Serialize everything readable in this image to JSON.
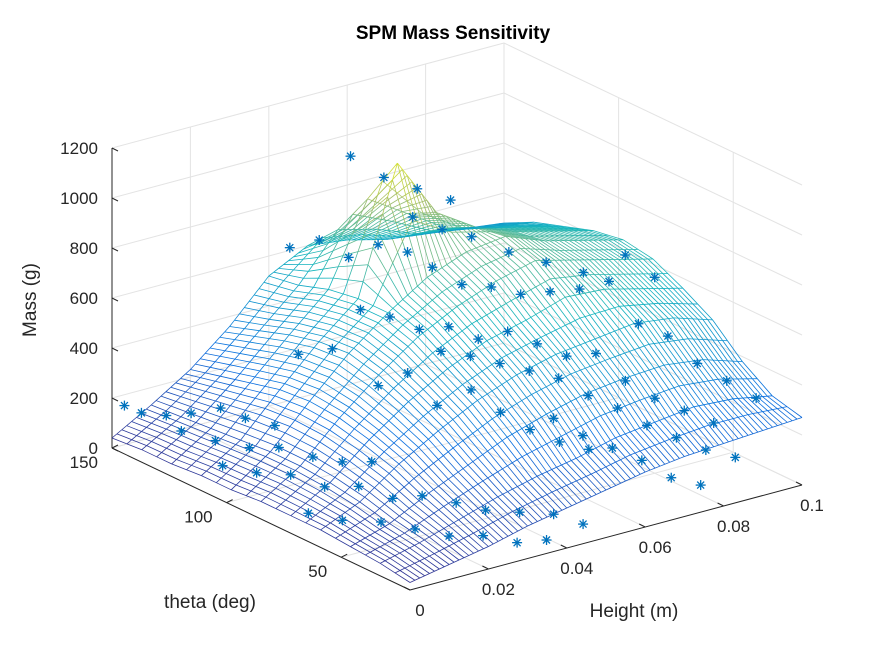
{
  "chart_data": {
    "type": "surface3d",
    "title": "SPM Mass Sensitivity",
    "xlabel": "Height (m)",
    "ylabel": "theta (deg)",
    "zlabel": "Mass (g)",
    "xlim": [
      0,
      0.1
    ],
    "ylim": [
      20,
      150
    ],
    "zlim": [
      0,
      1200
    ],
    "xticks": [
      "0",
      "0.02",
      "0.04",
      "0.06",
      "0.08",
      "0.1"
    ],
    "yticks": [
      "50",
      "100",
      "150"
    ],
    "zticks": [
      "0",
      "200",
      "400",
      "600",
      "800",
      "1000",
      "1200"
    ],
    "grid": true,
    "colormap": "parula",
    "surface": {
      "x": [
        0,
        0.01,
        0.02,
        0.03,
        0.04,
        0.05,
        0.06,
        0.07,
        0.08,
        0.09,
        0.1
      ],
      "y": [
        20,
        33,
        46,
        59,
        72,
        85,
        98,
        111,
        124,
        137,
        150
      ],
      "z": [
        [
          30,
          60,
          90,
          130,
          160,
          190,
          220,
          240,
          250,
          260,
          270
        ],
        [
          50,
          90,
          140,
          190,
          230,
          260,
          300,
          320,
          340,
          330,
          300
        ],
        [
          60,
          110,
          190,
          260,
          330,
          380,
          420,
          440,
          450,
          430,
          380
        ],
        [
          70,
          140,
          250,
          340,
          420,
          480,
          520,
          540,
          560,
          540,
          490
        ],
        [
          70,
          160,
          290,
          400,
          490,
          560,
          600,
          650,
          640,
          600,
          560
        ],
        [
          70,
          170,
          320,
          450,
          560,
          640,
          700,
          740,
          700,
          660,
          620
        ],
        [
          60,
          170,
          330,
          480,
          600,
          700,
          760,
          780,
          720,
          680,
          640
        ],
        [
          60,
          160,
          320,
          470,
          600,
          1100,
          860,
          760,
          700,
          660,
          620
        ],
        [
          50,
          150,
          290,
          440,
          580,
          900,
          800,
          700,
          660,
          620,
          580
        ],
        [
          50,
          140,
          260,
          400,
          540,
          720,
          680,
          620,
          600,
          560,
          540
        ],
        [
          40,
          130,
          230,
          360,
          520,
          600,
          580,
          540,
          520,
          500,
          480
        ]
      ]
    },
    "scatter_marker": "*",
    "scatter_color": "#0072BD",
    "scatter_points": [
      [
        0.002,
        148,
        170
      ],
      [
        0.004,
        144,
        150
      ],
      [
        0.008,
        140,
        140
      ],
      [
        0.012,
        136,
        150
      ],
      [
        0.016,
        130,
        180
      ],
      [
        0.02,
        126,
        140
      ],
      [
        0.024,
        120,
        120
      ],
      [
        0.006,
        130,
        130
      ],
      [
        0.01,
        122,
        110
      ],
      [
        0.014,
        114,
        100
      ],
      [
        0.018,
        108,
        110
      ],
      [
        0.022,
        100,
        90
      ],
      [
        0.026,
        94,
        80
      ],
      [
        0.03,
        88,
        90
      ],
      [
        0.006,
        112,
        70
      ],
      [
        0.01,
        104,
        60
      ],
      [
        0.014,
        96,
        70
      ],
      [
        0.018,
        88,
        40
      ],
      [
        0.022,
        80,
        60
      ],
      [
        0.026,
        72,
        30
      ],
      [
        0.03,
        66,
        50
      ],
      [
        0.034,
        58,
        40
      ],
      [
        0.038,
        52,
        20
      ],
      [
        0.042,
        44,
        30
      ],
      [
        0.046,
        36,
        40
      ],
      [
        0.05,
        30,
        10
      ],
      [
        0.008,
        78,
        20
      ],
      [
        0.012,
        70,
        10
      ],
      [
        0.016,
        60,
        30
      ],
      [
        0.02,
        52,
        20
      ],
      [
        0.024,
        44,
        10
      ],
      [
        0.028,
        36,
        30
      ],
      [
        0.032,
        28,
        20
      ],
      [
        0.036,
        22,
        40
      ],
      [
        0.03,
        120,
        380
      ],
      [
        0.034,
        112,
        420
      ],
      [
        0.036,
        134,
        720
      ],
      [
        0.04,
        128,
        760
      ],
      [
        0.044,
        122,
        700
      ],
      [
        0.048,
        116,
        760
      ],
      [
        0.052,
        110,
        740
      ],
      [
        0.056,
        106,
        680
      ],
      [
        0.06,
        100,
        620
      ],
      [
        0.064,
        94,
        620
      ],
      [
        0.068,
        88,
        600
      ],
      [
        0.072,
        82,
        620
      ],
      [
        0.076,
        76,
        640
      ],
      [
        0.08,
        70,
        680
      ],
      [
        0.084,
        64,
        520
      ],
      [
        0.088,
        58,
        480
      ],
      [
        0.092,
        52,
        380
      ],
      [
        0.096,
        46,
        320
      ],
      [
        0.1,
        40,
        260
      ],
      [
        0.04,
        110,
        560
      ],
      [
        0.044,
        104,
        540
      ],
      [
        0.048,
        98,
        500
      ],
      [
        0.052,
        92,
        520
      ],
      [
        0.056,
        86,
        480
      ],
      [
        0.06,
        80,
        520
      ],
      [
        0.064,
        74,
        480
      ],
      [
        0.068,
        68,
        440
      ],
      [
        0.072,
        62,
        460
      ],
      [
        0.076,
        56,
        360
      ],
      [
        0.08,
        50,
        300
      ],
      [
        0.084,
        44,
        260
      ],
      [
        0.088,
        38,
        220
      ],
      [
        0.05,
        92,
        430
      ],
      [
        0.054,
        86,
        420
      ],
      [
        0.058,
        80,
        400
      ],
      [
        0.062,
        74,
        380
      ],
      [
        0.066,
        68,
        360
      ],
      [
        0.07,
        62,
        300
      ],
      [
        0.074,
        56,
        260
      ],
      [
        0.078,
        50,
        200
      ],
      [
        0.082,
        44,
        160
      ],
      [
        0.086,
        38,
        120
      ],
      [
        0.09,
        32,
        100
      ],
      [
        0.06,
        60,
        260
      ],
      [
        0.064,
        54,
        200
      ],
      [
        0.068,
        48,
        160
      ],
      [
        0.072,
        42,
        120
      ],
      [
        0.076,
        36,
        60
      ],
      [
        0.08,
        30,
        40
      ],
      [
        0.046,
        72,
        380
      ],
      [
        0.05,
        66,
        300
      ],
      [
        0.054,
        60,
        240
      ],
      [
        0.058,
        54,
        200
      ],
      [
        0.062,
        48,
        180
      ],
      [
        0.042,
        80,
        300
      ],
      [
        0.038,
        86,
        420
      ],
      [
        0.034,
        92,
        360
      ],
      [
        0.055,
        140,
        980
      ],
      [
        0.06,
        134,
        900
      ],
      [
        0.065,
        128,
        860
      ],
      [
        0.07,
        122,
        820
      ],
      [
        0.058,
        118,
        820
      ],
      [
        0.062,
        112,
        780
      ],
      [
        0.066,
        106,
        760
      ],
      [
        0.072,
        100,
        700
      ],
      [
        0.078,
        94,
        660
      ],
      [
        0.084,
        88,
        620
      ],
      [
        0.09,
        80,
        700
      ],
      [
        0.094,
        74,
        620
      ]
    ]
  }
}
